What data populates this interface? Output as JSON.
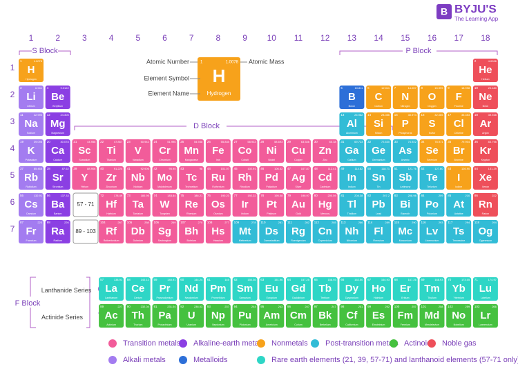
{
  "logo": {
    "name": "BYJU'S",
    "tagline": "The Learning App"
  },
  "groups": [
    "1",
    "2",
    "3",
    "4",
    "5",
    "6",
    "7",
    "8",
    "9",
    "10",
    "11",
    "12",
    "13",
    "14",
    "15",
    "16",
    "17",
    "18"
  ],
  "periods": [
    "1",
    "2",
    "3",
    "4",
    "5",
    "6",
    "7"
  ],
  "blocks": {
    "s": "S Block",
    "p": "P Block",
    "d": "D Block",
    "f": "F Block"
  },
  "series": {
    "lanthanide": "Lanthanide Series",
    "actinide": "Actinide Series",
    "lanthanide_period": "6",
    "actinide_period": "7",
    "lanthanide_range": "57 - 71",
    "actinide_range": "89 - 103"
  },
  "key": {
    "atomic_number": "Atomic Number",
    "element_symbol": "Element Symbol",
    "element_name": "Element Name",
    "atomic_mass": "Atomic Mass",
    "sample": {
      "number": 1,
      "mass": "1.0078",
      "symbol": "H",
      "name": "Hydrogen"
    }
  },
  "legend": [
    {
      "label": "Transition metals",
      "color": "#f25c9a"
    },
    {
      "label": "Alkaline-earth metals",
      "color": "#8b3fe3"
    },
    {
      "label": "Nonmetals",
      "color": "#f7a21b"
    },
    {
      "label": "Post-transition metals",
      "color": "#32bcd6"
    },
    {
      "label": "Actinoid",
      "color": "#45c13f"
    },
    {
      "label": "Noble gas",
      "color": "#ee4f5a"
    },
    {
      "label": "Alkali metals",
      "color": "#a37cf0"
    },
    {
      "label": "Metalloids",
      "color": "#2d6fd8"
    },
    {
      "label": "Rare earth elements (21, 39, 57-71) and lanthanoid elements (57-71 only)",
      "color": "#2ed6c6"
    }
  ],
  "elements": [
    {
      "z": 1,
      "sym": "H",
      "name": "Hydrogen",
      "mass": "1.0078",
      "cat": 2
    },
    {
      "z": 2,
      "sym": "He",
      "name": "Helium",
      "mass": "4.0026",
      "cat": 5
    },
    {
      "z": 3,
      "sym": "Li",
      "name": "Lithium",
      "mass": "6.941",
      "cat": 6
    },
    {
      "z": 4,
      "sym": "Be",
      "name": "Beryllium",
      "mass": "9.0122",
      "cat": 1
    },
    {
      "z": 5,
      "sym": "B",
      "name": "Boron",
      "mass": "10.811",
      "cat": 7
    },
    {
      "z": 6,
      "sym": "C",
      "name": "Carbon",
      "mass": "12.011",
      "cat": 2
    },
    {
      "z": 7,
      "sym": "N",
      "name": "Nitrogen",
      "mass": "14.007",
      "cat": 2
    },
    {
      "z": 8,
      "sym": "O",
      "name": "Oxygen",
      "mass": "15.999",
      "cat": 2
    },
    {
      "z": 9,
      "sym": "F",
      "name": "Fluorine",
      "mass": "18.998",
      "cat": 2
    },
    {
      "z": 10,
      "sym": "Ne",
      "name": "Neon",
      "mass": "20.180",
      "cat": 5
    },
    {
      "z": 11,
      "sym": "Na",
      "name": "Sodium",
      "mass": "22.990",
      "cat": 6
    },
    {
      "z": 12,
      "sym": "Mg",
      "name": "Magnesium",
      "mass": "24.305",
      "cat": 1
    },
    {
      "z": 13,
      "sym": "Al",
      "name": "Aluminium",
      "mass": "26.982",
      "cat": 3
    },
    {
      "z": 14,
      "sym": "Si",
      "name": "Silicon",
      "mass": "28.086",
      "cat": 2
    },
    {
      "z": 15,
      "sym": "P",
      "name": "Phosphorus",
      "mass": "30.974",
      "cat": 2
    },
    {
      "z": 16,
      "sym": "S",
      "name": "Sulfur",
      "mass": "32.065",
      "cat": 2
    },
    {
      "z": 17,
      "sym": "Cl",
      "name": "Chlorine",
      "mass": "35.453",
      "cat": 2
    },
    {
      "z": 18,
      "sym": "Ar",
      "name": "Argon",
      "mass": "39.948",
      "cat": 5
    },
    {
      "z": 19,
      "sym": "K",
      "name": "Potassium",
      "mass": "39.098",
      "cat": 6
    },
    {
      "z": 20,
      "sym": "Ca",
      "name": "Calcium",
      "mass": "40.078",
      "cat": 1
    },
    {
      "z": 21,
      "sym": "Sc",
      "name": "Scandium",
      "mass": "44.956",
      "cat": 0
    },
    {
      "z": 22,
      "sym": "Ti",
      "name": "Titanium",
      "mass": "47.867",
      "cat": 0
    },
    {
      "z": 23,
      "sym": "V",
      "name": "Vanadium",
      "mass": "50.942",
      "cat": 0
    },
    {
      "z": 24,
      "sym": "Cr",
      "name": "Chromium",
      "mass": "51.996",
      "cat": 0
    },
    {
      "z": 25,
      "sym": "Mn",
      "name": "Manganese",
      "mass": "54.938",
      "cat": 0
    },
    {
      "z": 26,
      "sym": "Fe",
      "name": "Iron",
      "mass": "55.845",
      "cat": 0
    },
    {
      "z": 27,
      "sym": "Co",
      "name": "Cobalt",
      "mass": "58.933",
      "cat": 0
    },
    {
      "z": 28,
      "sym": "Ni",
      "name": "Nickel",
      "mass": "58.693",
      "cat": 0
    },
    {
      "z": 29,
      "sym": "Cu",
      "name": "Copper",
      "mass": "63.546",
      "cat": 0
    },
    {
      "z": 30,
      "sym": "Zn",
      "name": "Zinc",
      "mass": "65.38",
      "cat": 0
    },
    {
      "z": 31,
      "sym": "Ga",
      "name": "Gallium",
      "mass": "69.723",
      "cat": 3
    },
    {
      "z": 32,
      "sym": "Ge",
      "name": "Germanium",
      "mass": "72.630",
      "cat": 3
    },
    {
      "z": 33,
      "sym": "As",
      "name": "Arsenic",
      "mass": "74.922",
      "cat": 3
    },
    {
      "z": 34,
      "sym": "Se",
      "name": "Selenium",
      "mass": "78.971",
      "cat": 2
    },
    {
      "z": 35,
      "sym": "Br",
      "name": "Bromine",
      "mass": "79.904",
      "cat": 2
    },
    {
      "z": 36,
      "sym": "Kr",
      "name": "Krypton",
      "mass": "83.798",
      "cat": 5
    },
    {
      "z": 37,
      "sym": "Rb",
      "name": "Rubidium",
      "mass": "85.468",
      "cat": 6
    },
    {
      "z": 38,
      "sym": "Sr",
      "name": "Strontium",
      "mass": "87.62",
      "cat": 1
    },
    {
      "z": 39,
      "sym": "Y",
      "name": "Yttrium",
      "mass": "88.906",
      "cat": 0
    },
    {
      "z": 40,
      "sym": "Zr",
      "name": "Zirconium",
      "mass": "91.224",
      "cat": 0
    },
    {
      "z": 41,
      "sym": "Nb",
      "name": "Niobium",
      "mass": "92.906",
      "cat": 0
    },
    {
      "z": 42,
      "sym": "Mo",
      "name": "Molybdenum",
      "mass": "95.95",
      "cat": 0
    },
    {
      "z": 43,
      "sym": "Tc",
      "name": "Technetium",
      "mass": "98",
      "cat": 0
    },
    {
      "z": 44,
      "sym": "Ru",
      "name": "Ruthenium",
      "mass": "101.07",
      "cat": 0
    },
    {
      "z": 45,
      "sym": "Rh",
      "name": "Rhodium",
      "mass": "102.91",
      "cat": 0
    },
    {
      "z": 46,
      "sym": "Pd",
      "name": "Palladium",
      "mass": "106.42",
      "cat": 0
    },
    {
      "z": 47,
      "sym": "Ag",
      "name": "Silver",
      "mass": "107.87",
      "cat": 0
    },
    {
      "z": 48,
      "sym": "Cd",
      "name": "Cadmium",
      "mass": "112.41",
      "cat": 0
    },
    {
      "z": 49,
      "sym": "In",
      "name": "Indium",
      "mass": "114.82",
      "cat": 3
    },
    {
      "z": 50,
      "sym": "Sn",
      "name": "Tin",
      "mass": "118.71",
      "cat": 3
    },
    {
      "z": 51,
      "sym": "Sb",
      "name": "Antimony",
      "mass": "121.76",
      "cat": 3
    },
    {
      "z": 52,
      "sym": "Te",
      "name": "Tellurium",
      "mass": "127.60",
      "cat": 3
    },
    {
      "z": 53,
      "sym": "I",
      "name": "Iodine",
      "mass": "126.90",
      "cat": 2
    },
    {
      "z": 54,
      "sym": "Xe",
      "name": "Xenon",
      "mass": "131.29",
      "cat": 5
    },
    {
      "z": 55,
      "sym": "Cs",
      "name": "Caesium",
      "mass": "132.91",
      "cat": 6
    },
    {
      "z": 56,
      "sym": "Ba",
      "name": "Barium",
      "mass": "137.33",
      "cat": 1
    },
    {
      "z": 57,
      "sym": "La",
      "name": "Lanthanum",
      "mass": "138.91",
      "cat": 8
    },
    {
      "z": 58,
      "sym": "Ce",
      "name": "Cerium",
      "mass": "140.12",
      "cat": 8
    },
    {
      "z": 59,
      "sym": "Pr",
      "name": "Praseodymium",
      "mass": "140.91",
      "cat": 8
    },
    {
      "z": 60,
      "sym": "Nd",
      "name": "Neodymium",
      "mass": "144.24",
      "cat": 8
    },
    {
      "z": 61,
      "sym": "Pm",
      "name": "Promethium",
      "mass": "145",
      "cat": 8
    },
    {
      "z": 62,
      "sym": "Sm",
      "name": "Samarium",
      "mass": "150.36",
      "cat": 8
    },
    {
      "z": 63,
      "sym": "Eu",
      "name": "Europium",
      "mass": "151.96",
      "cat": 8
    },
    {
      "z": 64,
      "sym": "Gd",
      "name": "Gadolinium",
      "mass": "157.25",
      "cat": 8
    },
    {
      "z": 65,
      "sym": "Tb",
      "name": "Terbium",
      "mass": "158.93",
      "cat": 8
    },
    {
      "z": 66,
      "sym": "Dy",
      "name": "Dysprosium",
      "mass": "162.50",
      "cat": 8
    },
    {
      "z": 67,
      "sym": "Ho",
      "name": "Holmium",
      "mass": "164.93",
      "cat": 8
    },
    {
      "z": 68,
      "sym": "Er",
      "name": "Erbium",
      "mass": "167.26",
      "cat": 8
    },
    {
      "z": 69,
      "sym": "Tm",
      "name": "Thulium",
      "mass": "168.93",
      "cat": 8
    },
    {
      "z": 70,
      "sym": "Yb",
      "name": "Ytterbium",
      "mass": "173.05",
      "cat": 8
    },
    {
      "z": 71,
      "sym": "Lu",
      "name": "Lutetium",
      "mass": "174.97",
      "cat": 8
    },
    {
      "z": 72,
      "sym": "Hf",
      "name": "Hafnium",
      "mass": "178.49",
      "cat": 0
    },
    {
      "z": 73,
      "sym": "Ta",
      "name": "Tantalum",
      "mass": "180.95",
      "cat": 0
    },
    {
      "z": 74,
      "sym": "W",
      "name": "Tungsten",
      "mass": "183.84",
      "cat": 0
    },
    {
      "z": 75,
      "sym": "Re",
      "name": "Rhenium",
      "mass": "186.21",
      "cat": 0
    },
    {
      "z": 76,
      "sym": "Os",
      "name": "Osmium",
      "mass": "190.23",
      "cat": 0
    },
    {
      "z": 77,
      "sym": "Ir",
      "name": "Iridium",
      "mass": "192.22",
      "cat": 0
    },
    {
      "z": 78,
      "sym": "Pt",
      "name": "Platinum",
      "mass": "195.08",
      "cat": 0
    },
    {
      "z": 79,
      "sym": "Au",
      "name": "Gold",
      "mass": "196.97",
      "cat": 0
    },
    {
      "z": 80,
      "sym": "Hg",
      "name": "Mercury",
      "mass": "200.59",
      "cat": 0
    },
    {
      "z": 81,
      "sym": "Tl",
      "name": "Thallium",
      "mass": "204.38",
      "cat": 3
    },
    {
      "z": 82,
      "sym": "Pb",
      "name": "Lead",
      "mass": "207.2",
      "cat": 3
    },
    {
      "z": 83,
      "sym": "Bi",
      "name": "Bismuth",
      "mass": "208.98",
      "cat": 3
    },
    {
      "z": 84,
      "sym": "Po",
      "name": "Polonium",
      "mass": "209",
      "cat": 3
    },
    {
      "z": 85,
      "sym": "At",
      "name": "Astatine",
      "mass": "210",
      "cat": 3
    },
    {
      "z": 86,
      "sym": "Rn",
      "name": "Radon",
      "mass": "222",
      "cat": 5
    },
    {
      "z": 87,
      "sym": "Fr",
      "name": "Francium",
      "mass": "223",
      "cat": 6
    },
    {
      "z": 88,
      "sym": "Ra",
      "name": "Radium",
      "mass": "226",
      "cat": 1
    },
    {
      "z": 89,
      "sym": "Ac",
      "name": "Actinium",
      "mass": "227",
      "cat": 4
    },
    {
      "z": 90,
      "sym": "Th",
      "name": "Thorium",
      "mass": "232.04",
      "cat": 4
    },
    {
      "z": 91,
      "sym": "Pa",
      "name": "Protactinium",
      "mass": "231.04",
      "cat": 4
    },
    {
      "z": 92,
      "sym": "U",
      "name": "Uranium",
      "mass": "238.03",
      "cat": 4
    },
    {
      "z": 93,
      "sym": "Np",
      "name": "Neptunium",
      "mass": "237",
      "cat": 4
    },
    {
      "z": 94,
      "sym": "Pu",
      "name": "Plutonium",
      "mass": "244",
      "cat": 4
    },
    {
      "z": 95,
      "sym": "Am",
      "name": "Americium",
      "mass": "243",
      "cat": 4
    },
    {
      "z": 96,
      "sym": "Cm",
      "name": "Curium",
      "mass": "247",
      "cat": 4
    },
    {
      "z": 97,
      "sym": "Bk",
      "name": "Berkelium",
      "mass": "247",
      "cat": 4
    },
    {
      "z": 98,
      "sym": "Cf",
      "name": "Californium",
      "mass": "251",
      "cat": 4
    },
    {
      "z": 99,
      "sym": "Es",
      "name": "Einsteinium",
      "mass": "252",
      "cat": 4
    },
    {
      "z": 100,
      "sym": "Fm",
      "name": "Fermium",
      "mass": "257",
      "cat": 4
    },
    {
      "z": 101,
      "sym": "Md",
      "name": "Mendelevium",
      "mass": "258",
      "cat": 4
    },
    {
      "z": 102,
      "sym": "No",
      "name": "Nobelium",
      "mass": "259",
      "cat": 4
    },
    {
      "z": 103,
      "sym": "Lr",
      "name": "Lawrencium",
      "mass": "266",
      "cat": 4
    },
    {
      "z": 104,
      "sym": "Rf",
      "name": "Rutherfordium",
      "mass": "267",
      "cat": 0
    },
    {
      "z": 105,
      "sym": "Db",
      "name": "Dubnium",
      "mass": "268",
      "cat": 0
    },
    {
      "z": 106,
      "sym": "Sg",
      "name": "Seaborgium",
      "mass": "269",
      "cat": 0
    },
    {
      "z": 107,
      "sym": "Bh",
      "name": "Bohrium",
      "mass": "270",
      "cat": 0
    },
    {
      "z": 108,
      "sym": "Hs",
      "name": "Hassium",
      "mass": "277",
      "cat": 0
    },
    {
      "z": 109,
      "sym": "Mt",
      "name": "Meitnerium",
      "mass": "278",
      "cat": 3
    },
    {
      "z": 110,
      "sym": "Ds",
      "name": "Darmstadtium",
      "mass": "281",
      "cat": 3
    },
    {
      "z": 111,
      "sym": "Rg",
      "name": "Roentgenium",
      "mass": "282",
      "cat": 3
    },
    {
      "z": 112,
      "sym": "Cn",
      "name": "Copernicium",
      "mass": "285",
      "cat": 3
    },
    {
      "z": 113,
      "sym": "Nh",
      "name": "Nihonium",
      "mass": "286",
      "cat": 3
    },
    {
      "z": 114,
      "sym": "Fl",
      "name": "Flerovium",
      "mass": "289",
      "cat": 3
    },
    {
      "z": 115,
      "sym": "Mc",
      "name": "Moscovium",
      "mass": "290",
      "cat": 3
    },
    {
      "z": 116,
      "sym": "Lv",
      "name": "Livermorium",
      "mass": "293",
      "cat": 3
    },
    {
      "z": 117,
      "sym": "Ts",
      "name": "Tennessine",
      "mass": "294",
      "cat": 3
    },
    {
      "z": 118,
      "sym": "Og",
      "name": "Oganesson",
      "mass": "294",
      "cat": 3
    }
  ]
}
